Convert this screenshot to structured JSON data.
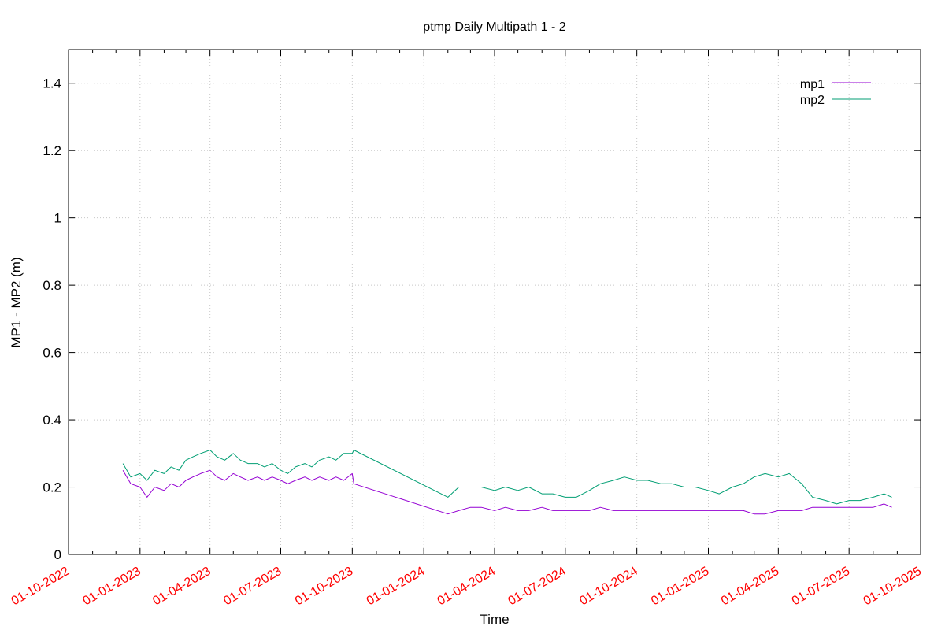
{
  "chart_data": {
    "type": "line",
    "title": "ptmp Daily Multipath 1 - 2",
    "xlabel": "Time",
    "ylabel": "MP1 - MP2 (m)",
    "xlim": [
      "2022-10-01",
      "2025-10-01"
    ],
    "ylim": [
      0,
      1.5
    ],
    "yticks": [
      0,
      0.2,
      0.4,
      0.6,
      0.8,
      1,
      1.2,
      1.4
    ],
    "ytick_labels": [
      "0",
      "0.2",
      "0.4",
      "0.6",
      "0.8",
      "1",
      "1.2",
      "1.4"
    ],
    "xticks": [
      "2022-10-01",
      "2023-01-01",
      "2023-04-01",
      "2023-07-01",
      "2023-10-01",
      "2024-01-01",
      "2024-04-01",
      "2024-07-01",
      "2024-10-01",
      "2025-01-01",
      "2025-04-01",
      "2025-07-01",
      "2025-10-01"
    ],
    "xtick_labels": [
      "01-10-2022",
      "01-01-2023",
      "01-04-2023",
      "01-07-2023",
      "01-10-2023",
      "01-01-2024",
      "01-04-2024",
      "01-07-2024",
      "01-10-2024",
      "01-01-2025",
      "01-04-2025",
      "01-07-2025",
      "01-10-2025"
    ],
    "xtick_color": "#ff0000",
    "grid": true,
    "legend_position": "top-right",
    "series": [
      {
        "name": "mp1",
        "color": "#9400d3",
        "points": [
          [
            "2022-12-10",
            0.25
          ],
          [
            "2022-12-20",
            0.21
          ],
          [
            "2023-01-01",
            0.2
          ],
          [
            "2023-01-10",
            0.17
          ],
          [
            "2023-01-20",
            0.2
          ],
          [
            "2023-02-01",
            0.19
          ],
          [
            "2023-02-10",
            0.21
          ],
          [
            "2023-02-20",
            0.2
          ],
          [
            "2023-03-01",
            0.22
          ],
          [
            "2023-03-10",
            0.23
          ],
          [
            "2023-03-20",
            0.24
          ],
          [
            "2023-04-01",
            0.25
          ],
          [
            "2023-04-10",
            0.23
          ],
          [
            "2023-04-20",
            0.22
          ],
          [
            "2023-05-01",
            0.24
          ],
          [
            "2023-05-10",
            0.23
          ],
          [
            "2023-05-20",
            0.22
          ],
          [
            "2023-06-01",
            0.23
          ],
          [
            "2023-06-10",
            0.22
          ],
          [
            "2023-06-20",
            0.23
          ],
          [
            "2023-07-01",
            0.22
          ],
          [
            "2023-07-10",
            0.21
          ],
          [
            "2023-07-20",
            0.22
          ],
          [
            "2023-08-01",
            0.23
          ],
          [
            "2023-08-10",
            0.22
          ],
          [
            "2023-08-20",
            0.23
          ],
          [
            "2023-09-01",
            0.22
          ],
          [
            "2023-09-10",
            0.23
          ],
          [
            "2023-09-20",
            0.22
          ],
          [
            "2023-10-01",
            0.24
          ],
          [
            "2023-10-03",
            0.21
          ],
          [
            "2024-02-01",
            0.12
          ],
          [
            "2024-02-15",
            0.13
          ],
          [
            "2024-03-01",
            0.14
          ],
          [
            "2024-03-15",
            0.14
          ],
          [
            "2024-04-01",
            0.13
          ],
          [
            "2024-04-15",
            0.14
          ],
          [
            "2024-05-01",
            0.13
          ],
          [
            "2024-05-15",
            0.13
          ],
          [
            "2024-06-01",
            0.14
          ],
          [
            "2024-06-15",
            0.13
          ],
          [
            "2024-07-01",
            0.13
          ],
          [
            "2024-07-15",
            0.13
          ],
          [
            "2024-08-01",
            0.13
          ],
          [
            "2024-08-15",
            0.14
          ],
          [
            "2024-09-01",
            0.13
          ],
          [
            "2024-09-15",
            0.13
          ],
          [
            "2024-10-01",
            0.13
          ],
          [
            "2024-10-15",
            0.13
          ],
          [
            "2024-11-01",
            0.13
          ],
          [
            "2024-11-15",
            0.13
          ],
          [
            "2024-12-01",
            0.13
          ],
          [
            "2024-12-15",
            0.13
          ],
          [
            "2025-01-01",
            0.13
          ],
          [
            "2025-01-15",
            0.13
          ],
          [
            "2025-02-01",
            0.13
          ],
          [
            "2025-02-15",
            0.13
          ],
          [
            "2025-03-01",
            0.12
          ],
          [
            "2025-03-15",
            0.12
          ],
          [
            "2025-04-01",
            0.13
          ],
          [
            "2025-04-15",
            0.13
          ],
          [
            "2025-05-01",
            0.13
          ],
          [
            "2025-05-15",
            0.14
          ],
          [
            "2025-06-01",
            0.14
          ],
          [
            "2025-06-15",
            0.14
          ],
          [
            "2025-07-01",
            0.14
          ],
          [
            "2025-07-15",
            0.14
          ],
          [
            "2025-08-01",
            0.14
          ],
          [
            "2025-08-15",
            0.15
          ],
          [
            "2025-08-25",
            0.14
          ]
        ]
      },
      {
        "name": "mp2",
        "color": "#009e73",
        "points": [
          [
            "2022-12-10",
            0.27
          ],
          [
            "2022-12-20",
            0.23
          ],
          [
            "2023-01-01",
            0.24
          ],
          [
            "2023-01-10",
            0.22
          ],
          [
            "2023-01-20",
            0.25
          ],
          [
            "2023-02-01",
            0.24
          ],
          [
            "2023-02-10",
            0.26
          ],
          [
            "2023-02-20",
            0.25
          ],
          [
            "2023-03-01",
            0.28
          ],
          [
            "2023-03-10",
            0.29
          ],
          [
            "2023-03-20",
            0.3
          ],
          [
            "2023-04-01",
            0.31
          ],
          [
            "2023-04-10",
            0.29
          ],
          [
            "2023-04-20",
            0.28
          ],
          [
            "2023-05-01",
            0.3
          ],
          [
            "2023-05-10",
            0.28
          ],
          [
            "2023-05-20",
            0.27
          ],
          [
            "2023-06-01",
            0.27
          ],
          [
            "2023-06-10",
            0.26
          ],
          [
            "2023-06-20",
            0.27
          ],
          [
            "2023-07-01",
            0.25
          ],
          [
            "2023-07-10",
            0.24
          ],
          [
            "2023-07-20",
            0.26
          ],
          [
            "2023-08-01",
            0.27
          ],
          [
            "2023-08-10",
            0.26
          ],
          [
            "2023-08-20",
            0.28
          ],
          [
            "2023-09-01",
            0.29
          ],
          [
            "2023-09-10",
            0.28
          ],
          [
            "2023-09-20",
            0.3
          ],
          [
            "2023-10-01",
            0.3
          ],
          [
            "2023-10-03",
            0.31
          ],
          [
            "2024-02-01",
            0.17
          ],
          [
            "2024-02-15",
            0.2
          ],
          [
            "2024-03-01",
            0.2
          ],
          [
            "2024-03-15",
            0.2
          ],
          [
            "2024-04-01",
            0.19
          ],
          [
            "2024-04-15",
            0.2
          ],
          [
            "2024-05-01",
            0.19
          ],
          [
            "2024-05-15",
            0.2
          ],
          [
            "2024-06-01",
            0.18
          ],
          [
            "2024-06-15",
            0.18
          ],
          [
            "2024-07-01",
            0.17
          ],
          [
            "2024-07-15",
            0.17
          ],
          [
            "2024-08-01",
            0.19
          ],
          [
            "2024-08-15",
            0.21
          ],
          [
            "2024-09-01",
            0.22
          ],
          [
            "2024-09-15",
            0.23
          ],
          [
            "2024-10-01",
            0.22
          ],
          [
            "2024-10-15",
            0.22
          ],
          [
            "2024-11-01",
            0.21
          ],
          [
            "2024-11-15",
            0.21
          ],
          [
            "2024-12-01",
            0.2
          ],
          [
            "2024-12-15",
            0.2
          ],
          [
            "2025-01-01",
            0.19
          ],
          [
            "2025-01-15",
            0.18
          ],
          [
            "2025-02-01",
            0.2
          ],
          [
            "2025-02-15",
            0.21
          ],
          [
            "2025-03-01",
            0.23
          ],
          [
            "2025-03-15",
            0.24
          ],
          [
            "2025-04-01",
            0.23
          ],
          [
            "2025-04-15",
            0.24
          ],
          [
            "2025-05-01",
            0.21
          ],
          [
            "2025-05-15",
            0.17
          ],
          [
            "2025-06-01",
            0.16
          ],
          [
            "2025-06-15",
            0.15
          ],
          [
            "2025-07-01",
            0.16
          ],
          [
            "2025-07-15",
            0.16
          ],
          [
            "2025-08-01",
            0.17
          ],
          [
            "2025-08-15",
            0.18
          ],
          [
            "2025-08-25",
            0.17
          ]
        ]
      }
    ]
  }
}
